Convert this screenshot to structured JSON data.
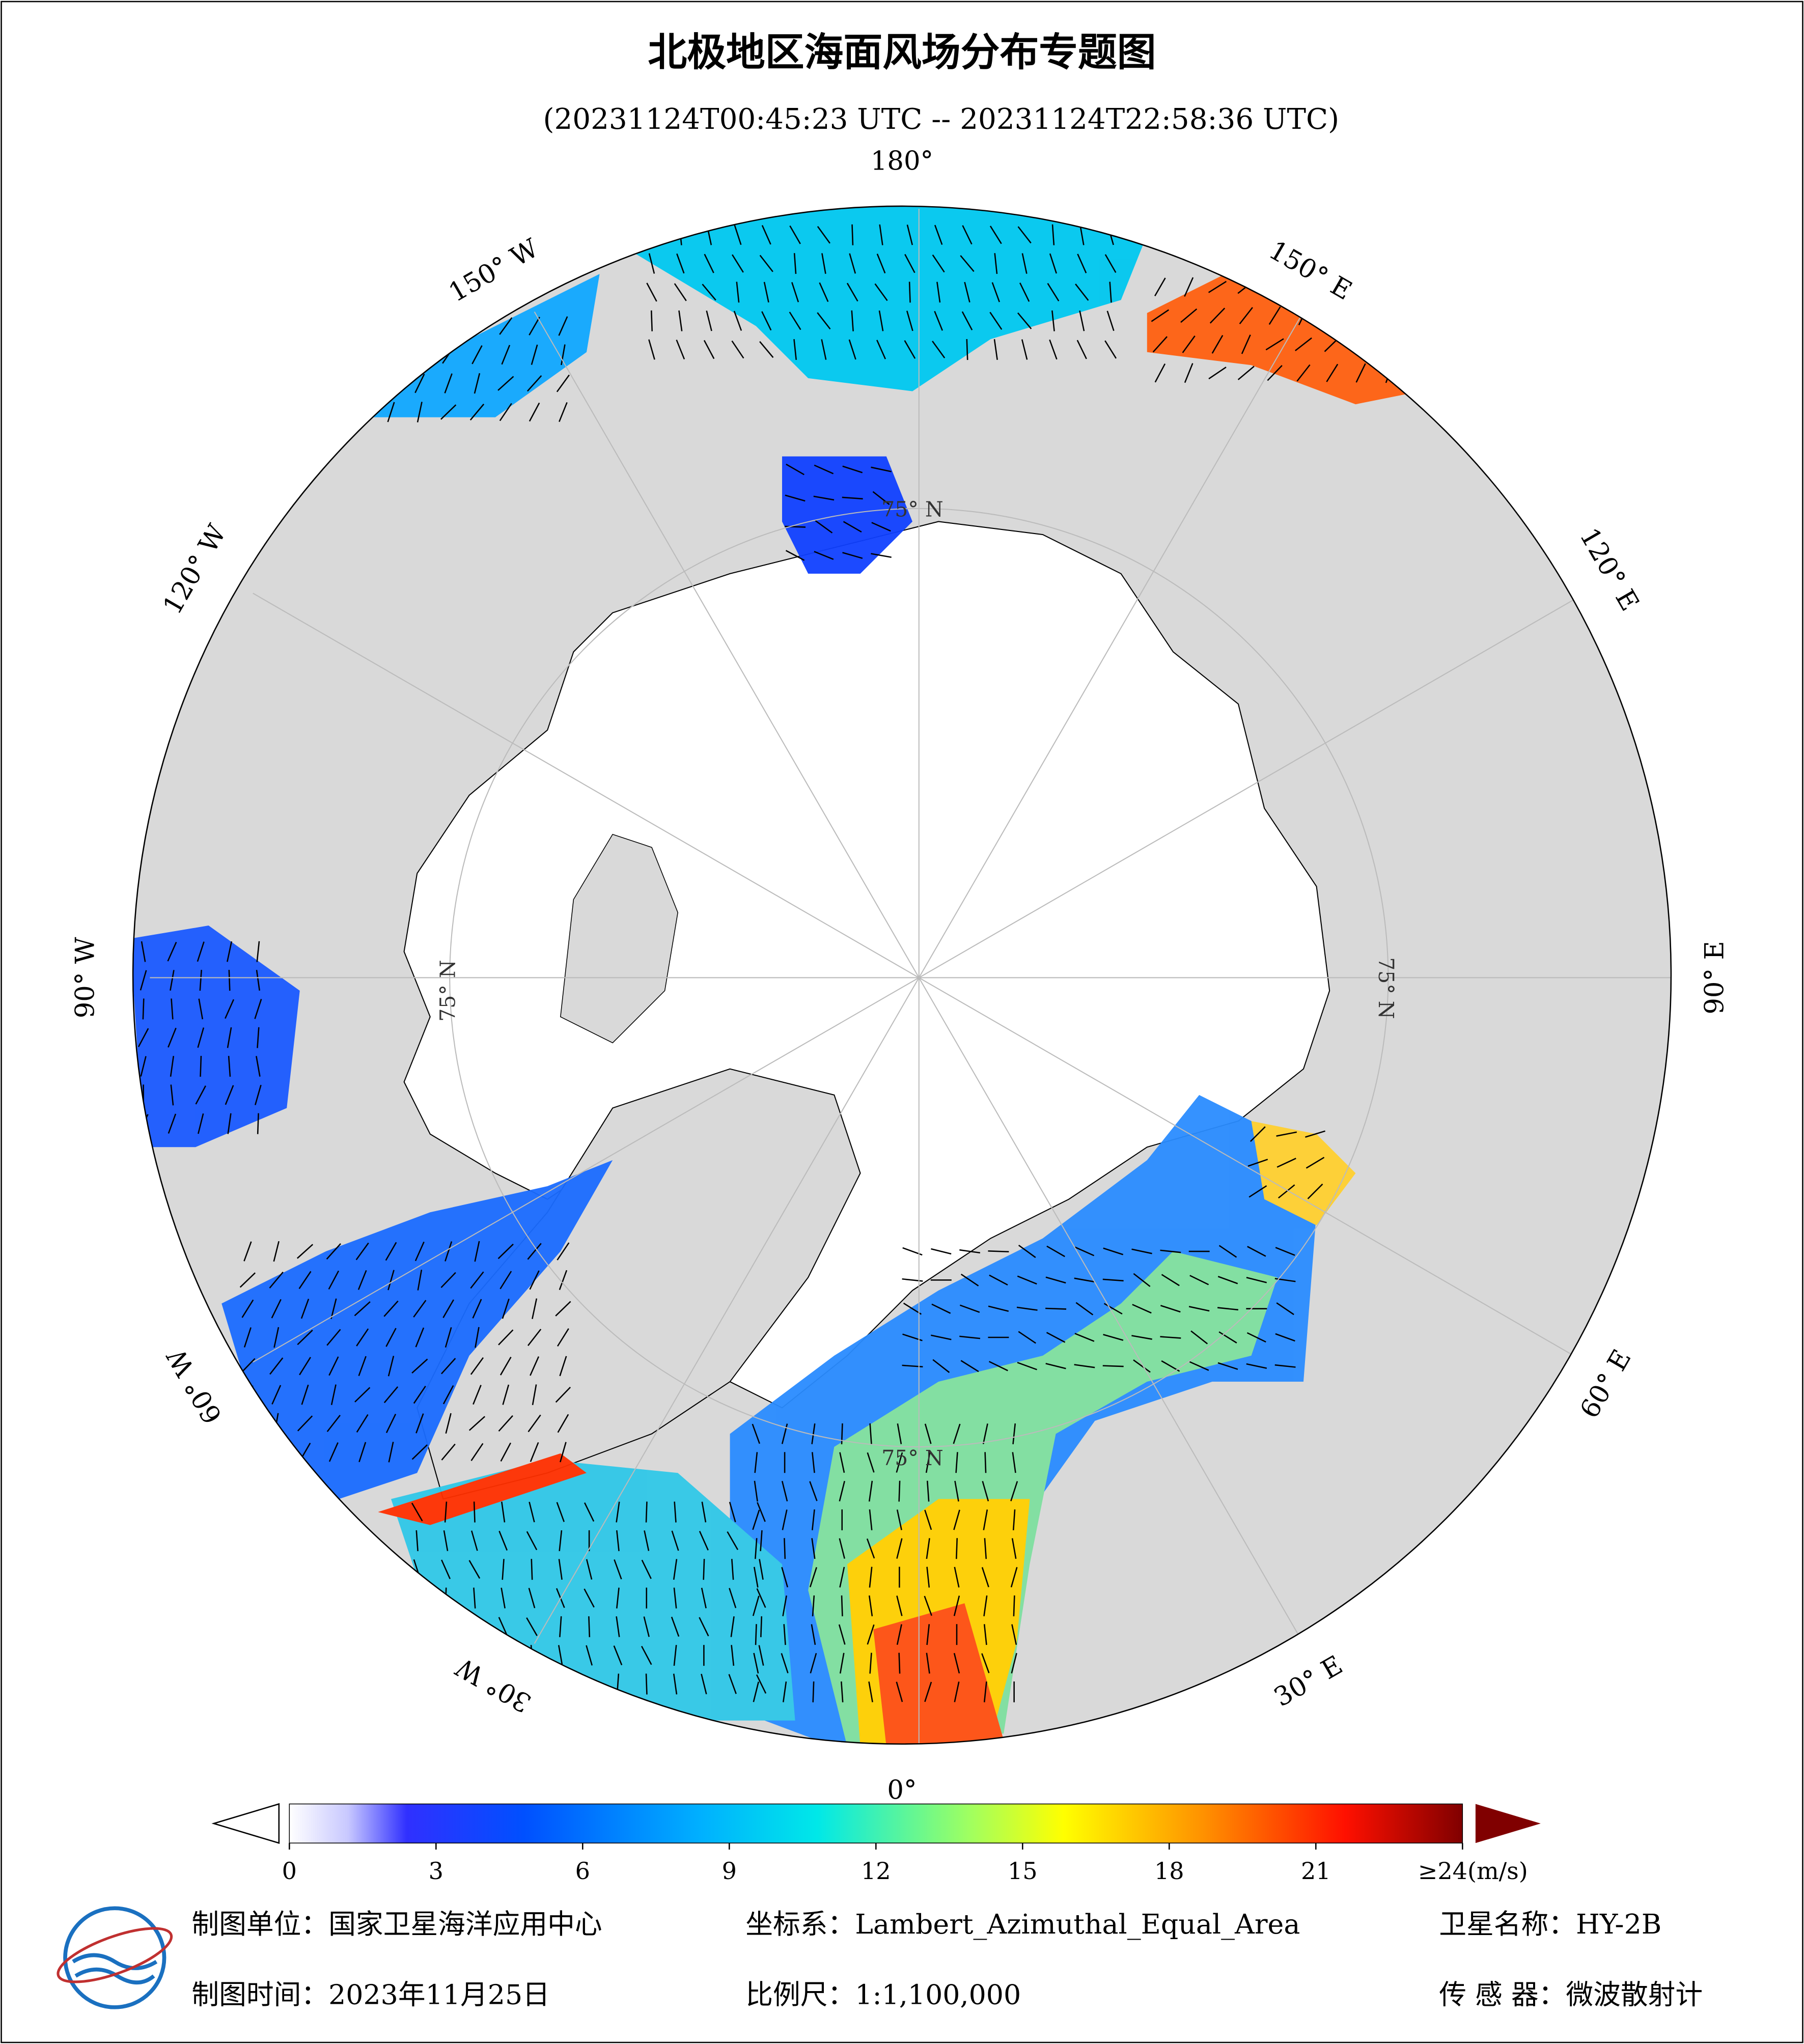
{
  "header": {
    "title": "北极地区海面风场分布专题图",
    "subtitle": "(20231124T00:45:23 UTC -- 20231124T22:58:36 UTC)"
  },
  "map": {
    "lon_labels": [
      "0°",
      "30° E",
      "60° E",
      "90° E",
      "120° E",
      "150° E",
      "180°",
      "150° W",
      "120° W",
      "90° W",
      "60° W",
      "30° W"
    ],
    "lat_labels": [
      "75° N",
      "75° N",
      "75° N",
      "75° N"
    ]
  },
  "colorbar": {
    "lim": [
      0,
      24
    ],
    "ticks": [
      0,
      3,
      6,
      9,
      12,
      15,
      18,
      21,
      {
        "value": 24,
        "label": "≥24(m/s)"
      }
    ]
  },
  "footer": {
    "unit": "制图单位：国家卫星海洋应用中心",
    "date": "制图时间：2023年11月25日",
    "crs": "坐标系：Lambert_Azimuthal_Equal_Area",
    "scale": "比例尺：1:1,100,000",
    "satellite": "卫星名称：HY-2B",
    "sensor": "传 感 器：微波散射计"
  }
}
